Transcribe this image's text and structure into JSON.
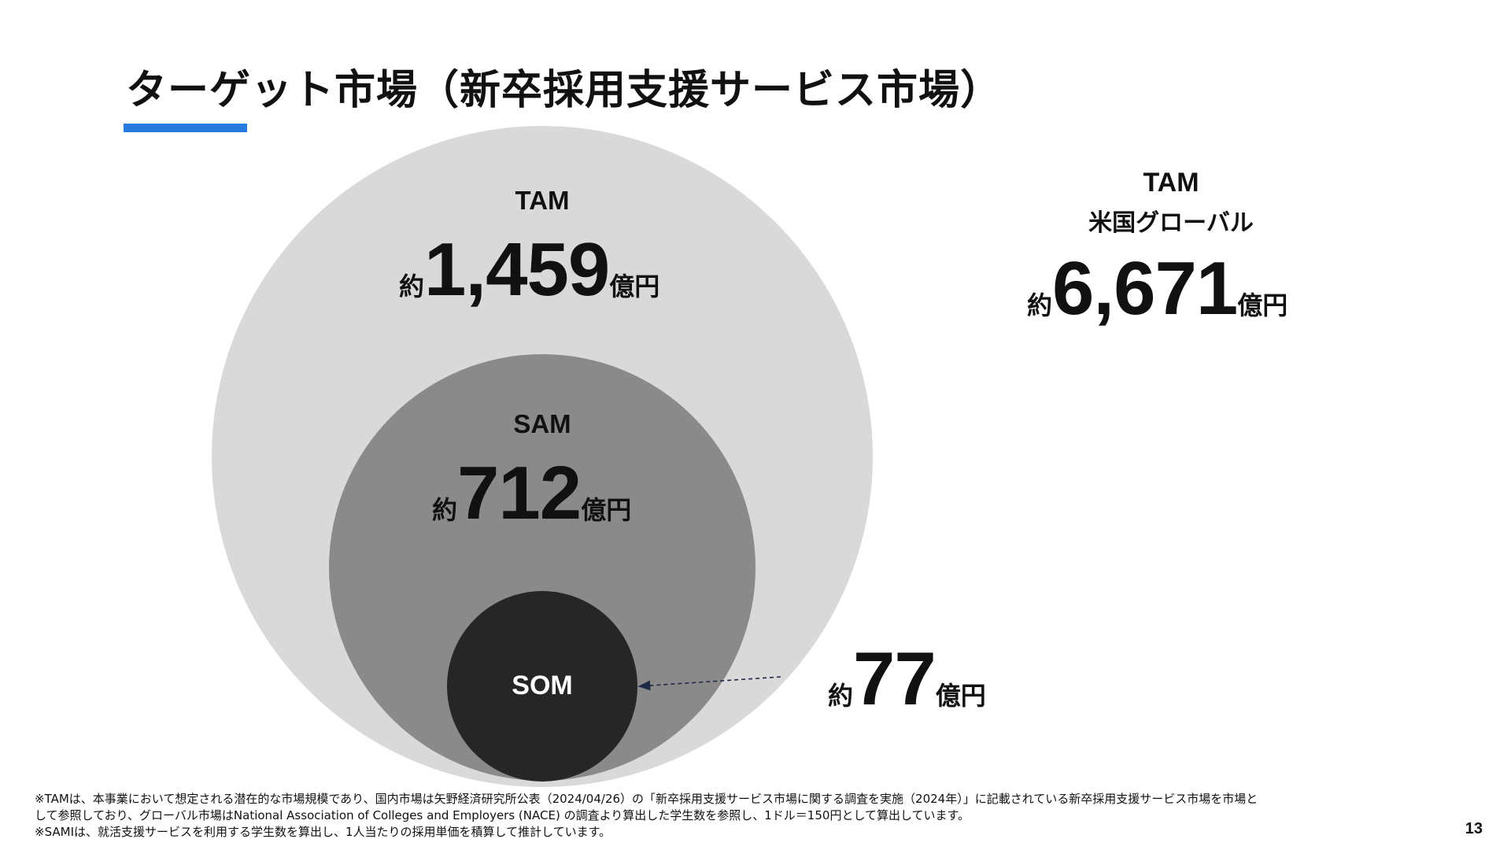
{
  "title": "ターゲット市場（新卒採用支援サービス市場）",
  "colors": {
    "accent_blue": "#2a7be0",
    "tam_circle": "#d9d9d9",
    "sam_circle": "#8a8a8a",
    "som_circle": "#262626",
    "text_dark": "#111111",
    "text_light": "#ffffff"
  },
  "tam": {
    "label": "TAM",
    "prefix": "約",
    "value": "1,459",
    "unit": "億円"
  },
  "sam": {
    "label": "SAM",
    "prefix": "約",
    "value": "712",
    "unit": "億円"
  },
  "som": {
    "label": "SOM",
    "prefix": "約",
    "value": "77",
    "unit": "億円"
  },
  "global_tam": {
    "label": "TAM",
    "sublabel": "米国グローバル",
    "prefix": "約",
    "value": "6,671",
    "unit": "億円"
  },
  "footnotes": {
    "line1": "※TAMは、本事業において想定される潜在的な市場規模であり、国内市場は矢野経済研究所公表（2024/04/26）の「新卒採用支援サービス市場に関する調査を実施（2024年）」に記載されている新卒採用支援サービス市場を市場と",
    "line2": "して参照しており、グローバル市場はNational Association of Colleges and Employers (NACE) の調査より算出した学生数を参照し、1ドル＝150円として算出しています。",
    "line3": "※SAMIは、就活支援サービスを利用する学生数を算出し、1人当たりの採用単価を積算して推計しています。"
  },
  "page_number": "13"
}
